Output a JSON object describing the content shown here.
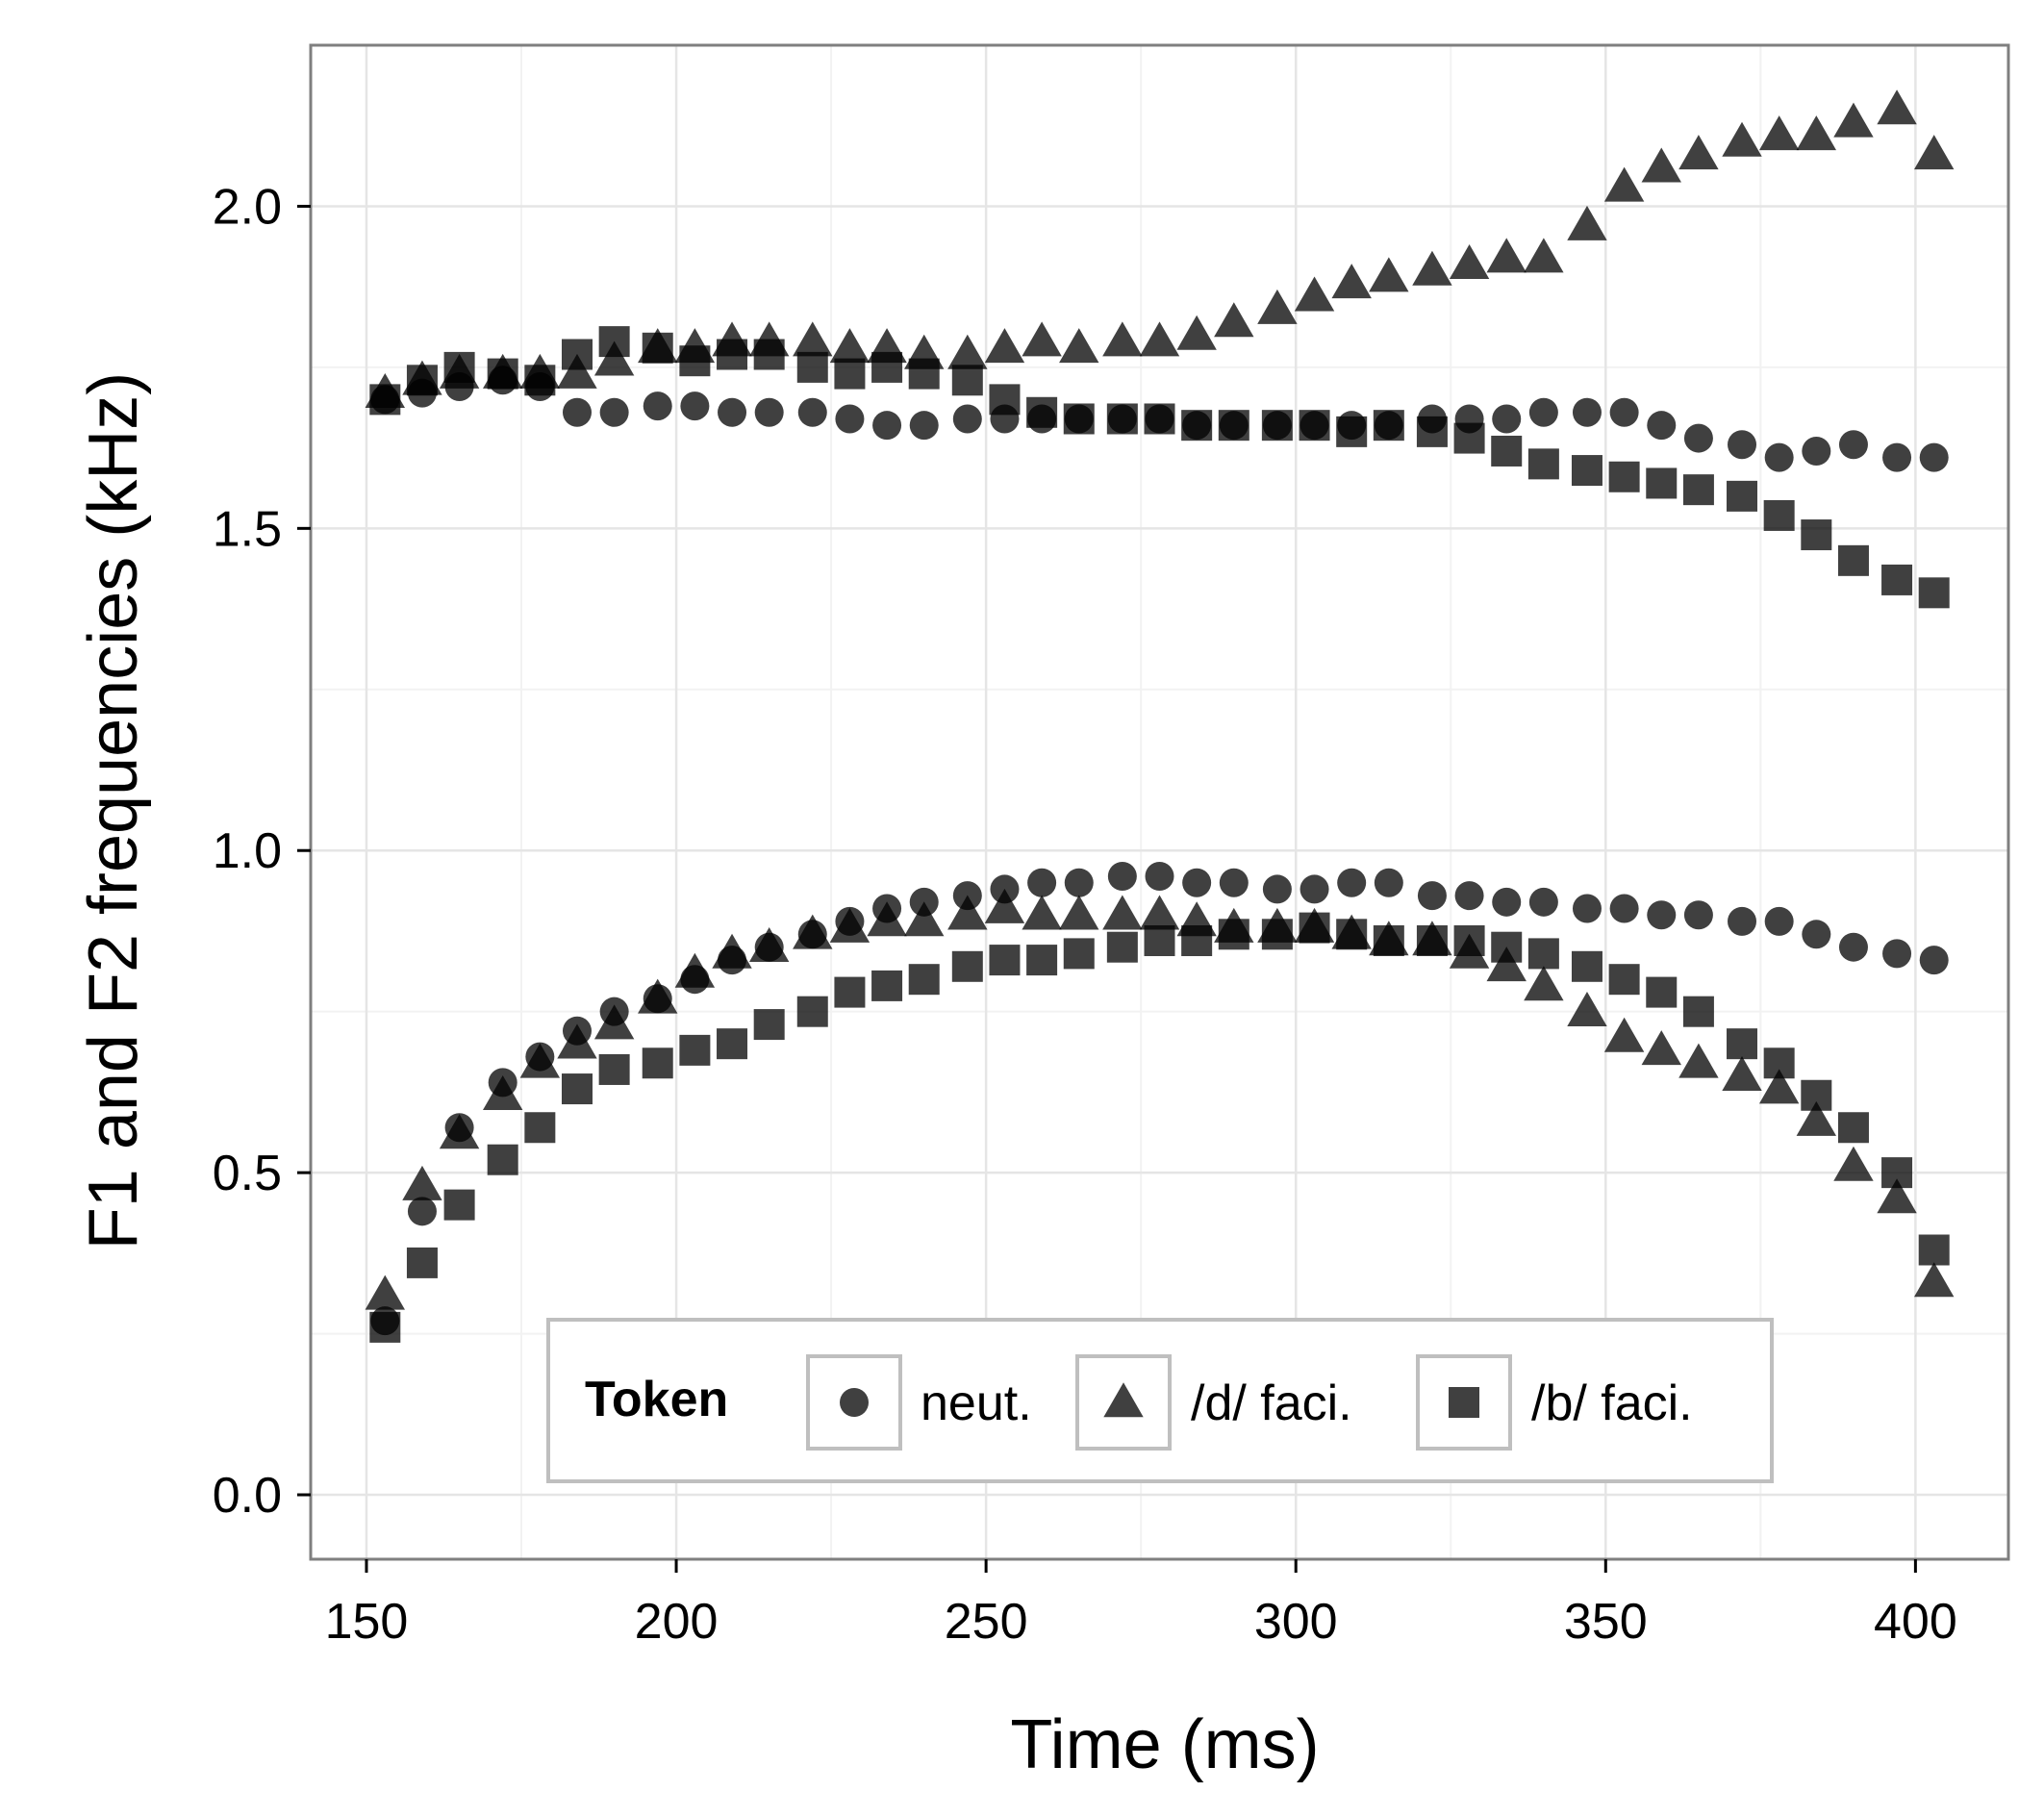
{
  "chart_data": {
    "type": "scatter",
    "xlabel": "Time (ms)",
    "ylabel": "F1 and F2 frequencies (kHz)",
    "xlim": [
      141,
      415
    ],
    "ylim": [
      -0.1,
      2.25
    ],
    "xticks": [
      150,
      200,
      250,
      300,
      350,
      400
    ],
    "xtick_labels": [
      "150",
      "200",
      "250",
      "300",
      "350",
      "400"
    ],
    "yticks": [
      0.0,
      0.5,
      1.0,
      1.5,
      2.0
    ],
    "ytick_labels": [
      "0.0",
      "0.5",
      "1.0",
      "1.5",
      "2.0"
    ],
    "grid": true,
    "legend": {
      "title": "Token",
      "position": "bottom-inside",
      "entries": [
        {
          "label": "neut.",
          "shape": "circle"
        },
        {
          "label": "/d/ faci.",
          "shape": "triangle"
        },
        {
          "label": "/b/ faci.",
          "shape": "square"
        }
      ]
    },
    "marker_color": "#000000",
    "marker_opacity": 0.75,
    "x": [
      153,
      159,
      165,
      172,
      178,
      184,
      190,
      197,
      203,
      209,
      215,
      222,
      228,
      234,
      240,
      247,
      253,
      259,
      265,
      272,
      278,
      284,
      290,
      297,
      303,
      309,
      315,
      322,
      328,
      334,
      340,
      347,
      353,
      359,
      365,
      372,
      378,
      384,
      390,
      397,
      403
    ],
    "series": [
      {
        "shape": "circle",
        "values_f2": [
          1.7,
          1.71,
          1.72,
          1.73,
          1.72,
          1.68,
          1.68,
          1.69,
          1.69,
          1.68,
          1.68,
          1.68,
          1.67,
          1.66,
          1.66,
          1.67,
          1.67,
          1.67,
          1.67,
          1.67,
          1.67,
          1.66,
          1.66,
          1.66,
          1.66,
          1.66,
          1.66,
          1.67,
          1.67,
          1.67,
          1.68,
          1.68,
          1.68,
          1.66,
          1.64,
          1.63,
          1.61,
          1.62,
          1.63,
          1.61,
          1.61
        ],
        "values_f1": [
          0.27,
          0.44,
          0.57,
          0.64,
          0.68,
          0.72,
          0.75,
          0.77,
          0.8,
          0.83,
          0.85,
          0.87,
          0.89,
          0.91,
          0.92,
          0.93,
          0.94,
          0.95,
          0.95,
          0.96,
          0.96,
          0.95,
          0.95,
          0.94,
          0.94,
          0.95,
          0.95,
          0.93,
          0.93,
          0.92,
          0.92,
          0.91,
          0.91,
          0.9,
          0.9,
          0.89,
          0.89,
          0.87,
          0.85,
          0.84,
          0.83
        ]
      },
      {
        "shape": "triangle",
        "values_f2": [
          1.71,
          1.73,
          1.74,
          1.74,
          1.74,
          1.74,
          1.76,
          1.78,
          1.78,
          1.79,
          1.79,
          1.79,
          1.78,
          1.78,
          1.77,
          1.77,
          1.78,
          1.79,
          1.78,
          1.79,
          1.79,
          1.8,
          1.82,
          1.84,
          1.86,
          1.88,
          1.89,
          1.9,
          1.91,
          1.92,
          1.92,
          1.97,
          2.03,
          2.06,
          2.08,
          2.1,
          2.11,
          2.11,
          2.13,
          2.15,
          2.08
        ],
        "values_f1": [
          0.31,
          0.48,
          0.56,
          0.62,
          0.67,
          0.7,
          0.73,
          0.77,
          0.81,
          0.84,
          0.85,
          0.87,
          0.88,
          0.89,
          0.89,
          0.9,
          0.91,
          0.9,
          0.9,
          0.9,
          0.9,
          0.89,
          0.88,
          0.88,
          0.88,
          0.87,
          0.86,
          0.86,
          0.84,
          0.82,
          0.79,
          0.75,
          0.71,
          0.69,
          0.67,
          0.65,
          0.63,
          0.58,
          0.51,
          0.46,
          0.33
        ]
      },
      {
        "shape": "square",
        "values_f2": [
          1.7,
          1.73,
          1.75,
          1.74,
          1.73,
          1.77,
          1.79,
          1.78,
          1.76,
          1.77,
          1.77,
          1.75,
          1.74,
          1.75,
          1.74,
          1.73,
          1.7,
          1.68,
          1.67,
          1.67,
          1.67,
          1.66,
          1.66,
          1.66,
          1.66,
          1.65,
          1.66,
          1.65,
          1.64,
          1.62,
          1.6,
          1.59,
          1.58,
          1.57,
          1.56,
          1.55,
          1.52,
          1.49,
          1.45,
          1.42,
          1.4
        ],
        "values_f1": [
          0.26,
          0.36,
          0.45,
          0.52,
          0.57,
          0.63,
          0.66,
          0.67,
          0.69,
          0.7,
          0.73,
          0.75,
          0.78,
          0.79,
          0.8,
          0.82,
          0.83,
          0.83,
          0.84,
          0.85,
          0.86,
          0.86,
          0.87,
          0.87,
          0.88,
          0.87,
          0.86,
          0.86,
          0.86,
          0.85,
          0.84,
          0.82,
          0.8,
          0.78,
          0.75,
          0.7,
          0.67,
          0.62,
          0.57,
          0.5,
          0.38
        ]
      }
    ]
  }
}
